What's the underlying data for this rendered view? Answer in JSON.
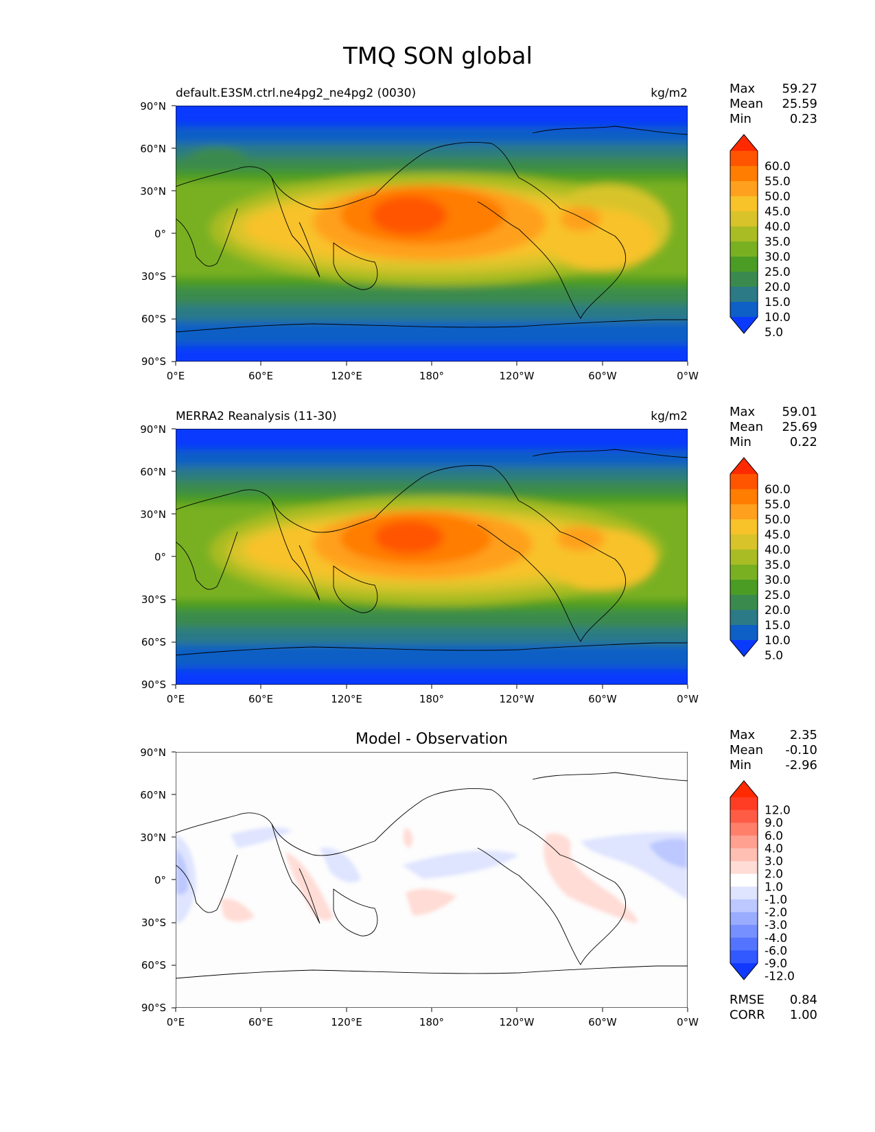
{
  "figure": {
    "title": "TMQ SON global",
    "lon_ticks": [
      "0°E",
      "60°E",
      "120°E",
      "180°",
      "120°W",
      "60°W",
      "0°W"
    ],
    "lat_ticks": [
      "90°N",
      "60°N",
      "30°N",
      "0°",
      "30°S",
      "60°S",
      "90°S"
    ]
  },
  "panels": [
    {
      "id": "model",
      "left_title": "default.E3SM.ctrl.ne4pg2_ne4pg2 (0030)",
      "center_title": "",
      "units": "kg/m2",
      "stats": [
        {
          "label": "Max",
          "value": "59.27"
        },
        {
          "label": "Mean",
          "value": "25.59"
        },
        {
          "label": "Min",
          "value": "0.23"
        }
      ],
      "colorbar_labels": [
        "60.0",
        "55.0",
        "50.0",
        "45.0",
        "40.0",
        "35.0",
        "30.0",
        "25.0",
        "20.0",
        "15.0",
        "10.0",
        "5.0"
      ],
      "colorbar_colors": [
        "#ff2a00",
        "#ff5500",
        "#ff7d00",
        "#ffa01e",
        "#f8c229",
        "#d8c42a",
        "#a9bc24",
        "#79b022",
        "#4b9c24",
        "#3a8a4e",
        "#2b7a86",
        "#0e5fc6",
        "#0a3afe"
      ]
    },
    {
      "id": "obs",
      "left_title": "MERRA2 Reanalysis (11-30)",
      "center_title": "",
      "units": "kg/m2",
      "stats": [
        {
          "label": "Max",
          "value": "59.01"
        },
        {
          "label": "Mean",
          "value": "25.69"
        },
        {
          "label": "Min",
          "value": "0.22"
        }
      ],
      "colorbar_labels": [
        "60.0",
        "55.0",
        "50.0",
        "45.0",
        "40.0",
        "35.0",
        "30.0",
        "25.0",
        "20.0",
        "15.0",
        "10.0",
        "5.0"
      ],
      "colorbar_colors": [
        "#ff2a00",
        "#ff5500",
        "#ff7d00",
        "#ffa01e",
        "#f8c229",
        "#d8c42a",
        "#a9bc24",
        "#79b022",
        "#4b9c24",
        "#3a8a4e",
        "#2b7a86",
        "#0e5fc6",
        "#0a3afe"
      ]
    },
    {
      "id": "diff",
      "left_title": "",
      "center_title": "Model - Observation",
      "units": "",
      "stats": [
        {
          "label": "Max",
          "value": "2.35"
        },
        {
          "label": "Mean",
          "value": "-0.10"
        },
        {
          "label": "Min",
          "value": "-2.96"
        }
      ],
      "colorbar_labels": [
        "12.0",
        "9.0",
        "6.0",
        "4.0",
        "3.0",
        "2.0",
        "1.0",
        "-1.0",
        "-2.0",
        "-3.0",
        "-4.0",
        "-6.0",
        "-9.0",
        "-12.0"
      ],
      "colorbar_colors": [
        "#ff2a00",
        "#ff3d24",
        "#ff5c46",
        "#ff7f6b",
        "#ffa090",
        "#ffbfb2",
        "#ffdcd5",
        "#ffffff",
        "#dfe4ff",
        "#bcc8ff",
        "#99acff",
        "#7690ff",
        "#5474ff",
        "#3258ff",
        "#1038ff"
      ],
      "bottom_stats": [
        {
          "label": "RMSE",
          "value": "0.84"
        },
        {
          "label": "CORR",
          "value": "1.00"
        }
      ]
    }
  ]
}
